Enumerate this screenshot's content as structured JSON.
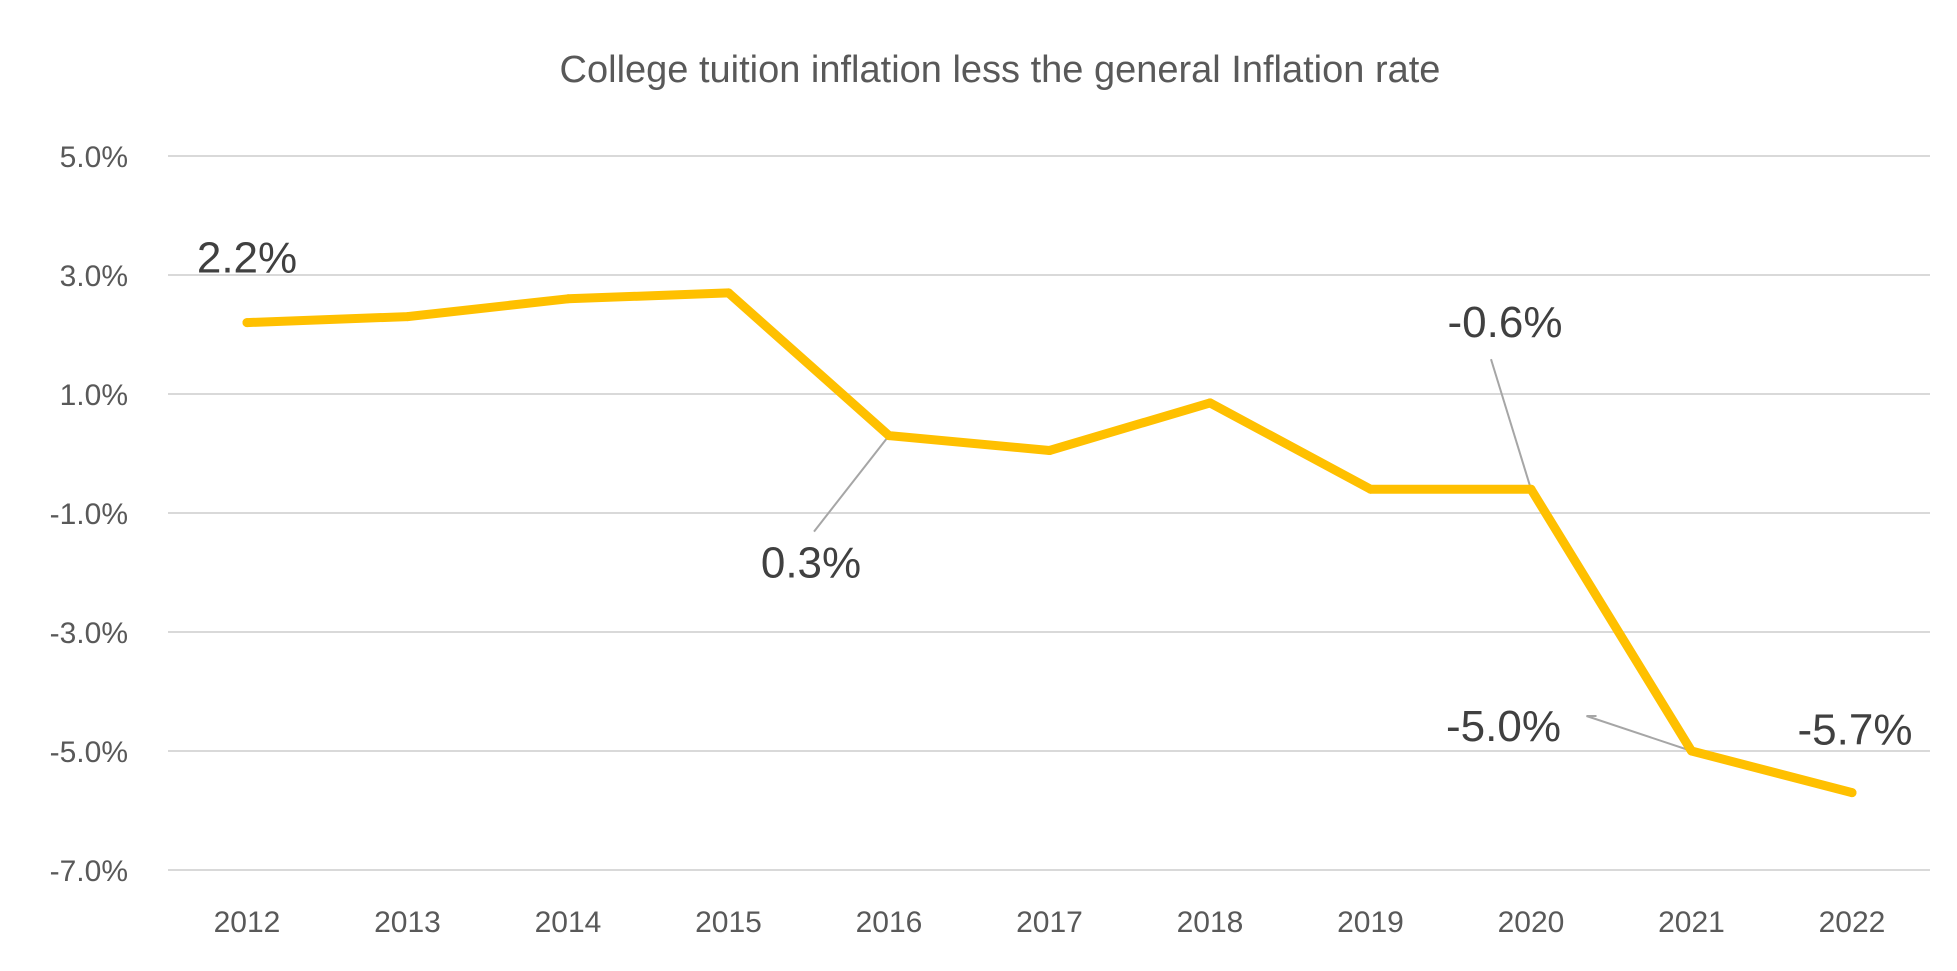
{
  "chart_data": {
    "type": "line",
    "title": "College tuition inflation less the general Inflation rate",
    "xlabel": "",
    "ylabel": "",
    "categories": [
      "2012",
      "2013",
      "2014",
      "2015",
      "2016",
      "2017",
      "2018",
      "2019",
      "2020",
      "2021",
      "2022"
    ],
    "series": [
      {
        "values": [
          2.2,
          2.3,
          2.6,
          2.7,
          0.3,
          0.05,
          0.85,
          -0.6,
          -0.6,
          -5.0,
          -5.7
        ],
        "color": "#ffc000"
      }
    ],
    "ylim": [
      -7.0,
      5.0
    ],
    "yticks": [
      "5.0%",
      "3.0%",
      "1.0%",
      "-1.0%",
      "-3.0%",
      "-5.0%",
      "-7.0%"
    ],
    "grid": true,
    "legend": "none",
    "data_labels": [
      {
        "category": "2012",
        "text": "2.2%"
      },
      {
        "category": "2016",
        "text": "0.3%"
      },
      {
        "category": "2020",
        "text": "-0.6%"
      },
      {
        "category": "2021",
        "text": "-5.0%"
      },
      {
        "category": "2022",
        "text": "-5.7%"
      }
    ]
  }
}
